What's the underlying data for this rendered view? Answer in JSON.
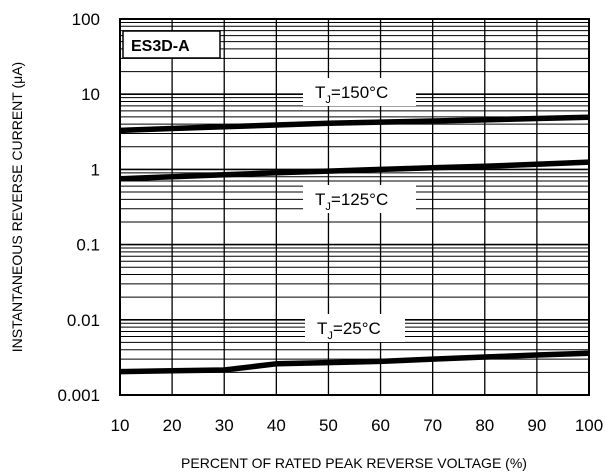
{
  "chart_data": {
    "type": "line",
    "title": "ES3D-A",
    "xlabel": "PERCENT OF RATED PEAK REVERSE VOLTAGE (%)",
    "ylabel": "INSTANTANEOUS REVERSE CURRENT (μA)",
    "xlim": [
      10,
      100
    ],
    "ylim": [
      0.001,
      100
    ],
    "yscale": "log",
    "grid": true,
    "x_ticks": [
      "10",
      "20",
      "30",
      "40",
      "50",
      "60",
      "70",
      "80",
      "90",
      "100"
    ],
    "y_ticks": [
      "0.001",
      "0.01",
      "0.1",
      "1",
      "10",
      "100"
    ],
    "series": [
      {
        "name": "TJ=150°C",
        "label_main": "T",
        "label_sub": "J",
        "label_rest": "=150°C",
        "x": [
          10,
          20,
          30,
          40,
          50,
          60,
          70,
          80,
          90,
          100
        ],
        "y": [
          3.3,
          3.5,
          3.7,
          3.9,
          4.1,
          4.25,
          4.4,
          4.55,
          4.75,
          4.95
        ]
      },
      {
        "name": "TJ=125°C",
        "label_main": "T",
        "label_sub": "J",
        "label_rest": "=125°C",
        "x": [
          10,
          20,
          30,
          40,
          50,
          60,
          70,
          80,
          90,
          100
        ],
        "y": [
          0.75,
          0.8,
          0.85,
          0.9,
          0.95,
          1.0,
          1.05,
          1.1,
          1.17,
          1.25
        ]
      },
      {
        "name": "TJ=25°C",
        "label_main": "T",
        "label_sub": "J",
        "label_rest": "=25°C",
        "x": [
          10,
          20,
          30,
          40,
          50,
          60,
          70,
          80,
          90,
          100
        ],
        "y": [
          0.00205,
          0.0021,
          0.00215,
          0.0026,
          0.0027,
          0.0028,
          0.003,
          0.0032,
          0.0034,
          0.0036
        ]
      }
    ]
  }
}
